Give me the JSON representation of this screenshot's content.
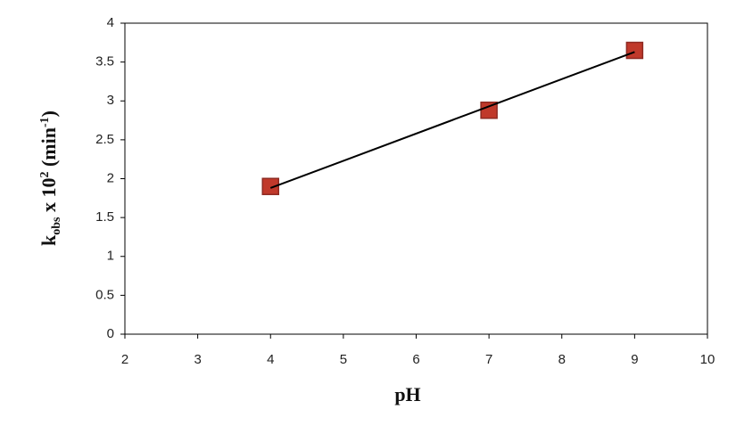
{
  "chart_data": {
    "type": "scatter",
    "xlabel": "pH",
    "ylabel_parts": [
      "k",
      "obs",
      " x 10",
      "2",
      " (min",
      "-1",
      ")"
    ],
    "x": [
      4,
      7,
      9
    ],
    "series": [
      {
        "color": "#c0392b",
        "values": [
          1.9,
          2.88,
          3.65
        ]
      }
    ],
    "trendline": {
      "color": "#000000",
      "x": [
        4,
        9
      ],
      "values": [
        1.88,
        3.63
      ]
    },
    "xlim": [
      2,
      10
    ],
    "xticks": [
      2,
      3,
      4,
      5,
      6,
      7,
      8,
      9,
      10
    ],
    "ylim": [
      0,
      4
    ],
    "yticks": [
      0,
      0.5,
      1,
      1.5,
      2,
      2.5,
      3,
      3.5,
      4
    ],
    "grid": false
  }
}
